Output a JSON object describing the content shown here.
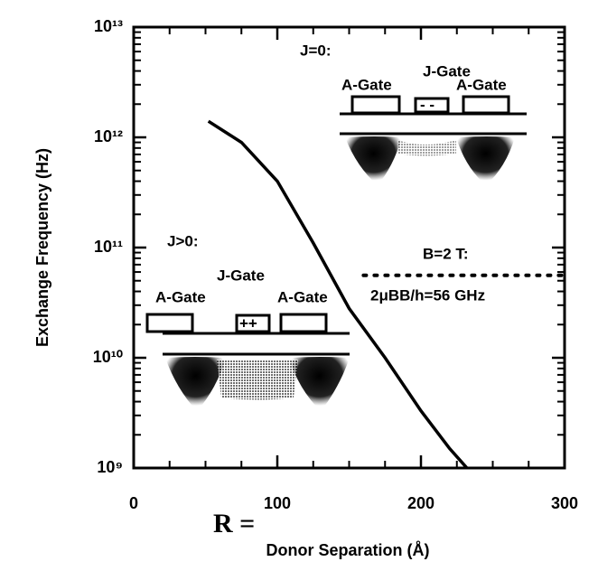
{
  "chart_data": {
    "type": "line",
    "xlabel": "Donor Separation (Å)",
    "ylabel": "Exchange Frequency (Hz)",
    "log_scale_y": true,
    "xlim": [
      0,
      300
    ],
    "xticks": [
      0,
      100,
      200,
      300
    ],
    "ylim": [
      1000000000,
      10000000000000
    ],
    "yticks": [
      {
        "value": 1000000000,
        "label": "10⁹"
      },
      {
        "value": 10000000000,
        "label": "10¹⁰"
      },
      {
        "value": 100000000000,
        "label": "10¹¹"
      },
      {
        "value": 1000000000000,
        "label": "10¹²"
      },
      {
        "value": 10000000000000,
        "label": "10¹³"
      }
    ],
    "series": [
      {
        "color": "#000000",
        "style": "solid",
        "x": [
          52,
          75,
          100,
          125,
          150,
          175,
          200,
          220,
          232
        ],
        "values": [
          1400000000000,
          900000000000,
          400000000000,
          110000000000,
          28000000000,
          10000000000,
          3300000000,
          1500000000,
          1000000000
        ]
      },
      {
        "color": "#000000",
        "style": "dotted",
        "x": [
          160,
          300
        ],
        "values": [
          56000000000,
          56000000000
        ]
      }
    ],
    "annotations": {
      "j0": "J=0:",
      "j0_jgate": "J-Gate",
      "j0_agate_left": "A-Gate",
      "j0_agate_right": "A-Gate",
      "j0_sign": "- -",
      "jpos": "J>0:",
      "jpos_jgate": "J-Gate",
      "jpos_agate_left": "A-Gate",
      "jpos_agate_right": "A-Gate",
      "jpos_sign": "++",
      "field": "B=2 T:",
      "freq": "2μBB/h=56 GHz",
      "stray": "R ="
    }
  }
}
